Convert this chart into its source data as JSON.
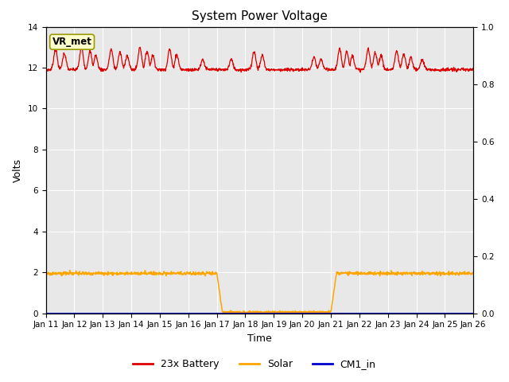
{
  "title": "System Power Voltage",
  "xlabel": "Time",
  "ylabel": "Volts",
  "ylim_left": [
    0,
    14
  ],
  "ylim_right": [
    0.0,
    1.0
  ],
  "yticks_left": [
    0,
    2,
    4,
    6,
    8,
    10,
    12,
    14
  ],
  "yticks_right": [
    0.0,
    0.2,
    0.4,
    0.6,
    0.8,
    1.0
  ],
  "xtick_labels": [
    "Jan 11",
    "Jan 12",
    "Jan 13",
    "Jan 14",
    "Jan 15",
    "Jan 16",
    "Jan 17",
    "Jan 18",
    "Jan 19",
    "Jan 20",
    "Jan 21",
    "Jan 22",
    "Jan 23",
    "Jan 24",
    "Jan 25",
    "Jan 26"
  ],
  "legend_labels": [
    "23x Battery",
    "Solar",
    "CM1_in"
  ],
  "legend_colors": [
    "#dd0000",
    "#ffa500",
    "#0000cc"
  ],
  "bg_color": "#e8e8e8",
  "annotation_text": "VR_met",
  "annotation_box_color": "#ffffcc",
  "annotation_box_edge": "#999900",
  "grid_color": "#ffffff",
  "title_fontsize": 11,
  "label_fontsize": 9,
  "tick_fontsize": 7.5
}
